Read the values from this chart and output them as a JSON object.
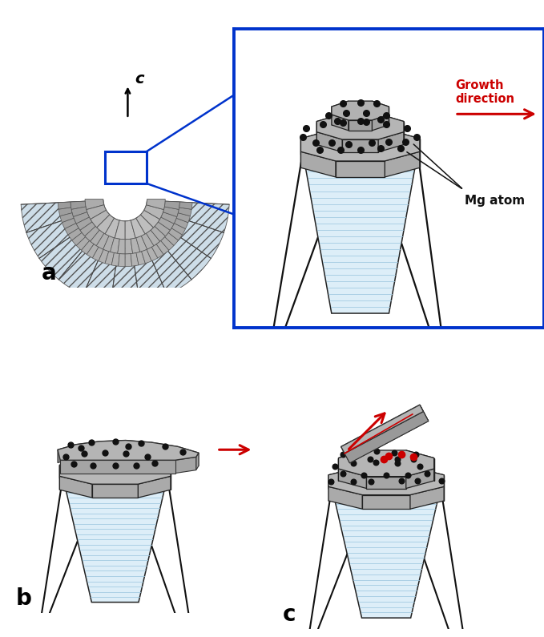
{
  "bg_color": "#ffffff",
  "label_a": "a",
  "label_b": "b",
  "label_c": "c",
  "label_c_axis": "c",
  "growth_direction_text": "Growth\ndirection",
  "mg_atom_text": "Mg atom",
  "blue_box_color": "#0033cc",
  "red_arrow_color": "#cc0000",
  "dot_color_black": "#111111",
  "dot_color_red": "#cc0000",
  "gray_top": "#b8b8b8",
  "gray_side_dark": "#888888",
  "gray_side_light": "#a8a8a8",
  "col_fill": "#ddeef8",
  "col_stripe": "#9ec8e0",
  "col_edge": "#222222"
}
